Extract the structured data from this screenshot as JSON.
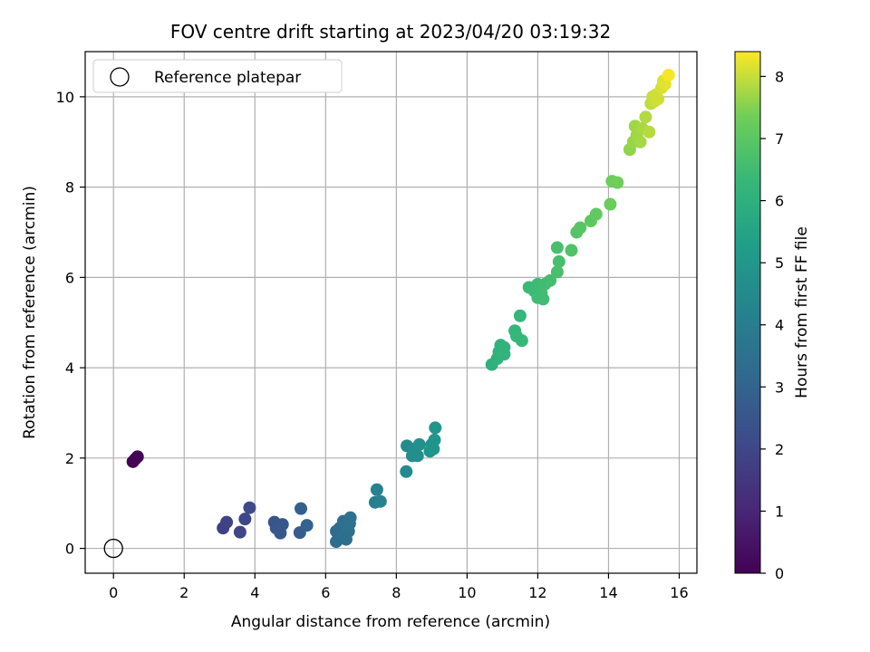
{
  "chart_data": {
    "type": "scatter",
    "title": "FOV centre drift starting at 2023/04/20 03:19:32",
    "xlabel": "Angular distance from reference (arcmin)",
    "ylabel": "Rotation from reference (arcmin)",
    "xlim": [
      -0.8,
      16.5
    ],
    "ylim": [
      -0.55,
      11.0
    ],
    "xticks": [
      0,
      2,
      4,
      6,
      8,
      10,
      12,
      14,
      16
    ],
    "yticks": [
      0,
      2,
      4,
      6,
      8,
      10
    ],
    "grid": true,
    "legend": {
      "placement": "upper-left",
      "entries": [
        "Reference platepar"
      ]
    },
    "colorbar": {
      "label": "Hours from first FF file",
      "min": 0,
      "max": 8.4,
      "ticks": [
        0,
        1,
        2,
        3,
        4,
        5,
        6,
        7,
        8
      ],
      "colormap": "viridis"
    },
    "reference_point": {
      "x": 0,
      "y": 0,
      "label": "Reference platepar"
    },
    "points": [
      {
        "x": 0.55,
        "y": 1.92,
        "c": 0.0
      },
      {
        "x": 0.62,
        "y": 1.98,
        "c": 0.05
      },
      {
        "x": 0.68,
        "y": 2.03,
        "c": 0.1
      },
      {
        "x": 3.1,
        "y": 0.45,
        "c": 1.8
      },
      {
        "x": 3.2,
        "y": 0.58,
        "c": 1.85
      },
      {
        "x": 3.58,
        "y": 0.36,
        "c": 2.0
      },
      {
        "x": 3.72,
        "y": 0.65,
        "c": 2.05
      },
      {
        "x": 3.85,
        "y": 0.9,
        "c": 2.1
      },
      {
        "x": 4.55,
        "y": 0.58,
        "c": 2.45
      },
      {
        "x": 4.6,
        "y": 0.45,
        "c": 2.5
      },
      {
        "x": 4.72,
        "y": 0.34,
        "c": 2.55
      },
      {
        "x": 4.78,
        "y": 0.53,
        "c": 2.6
      },
      {
        "x": 5.27,
        "y": 0.35,
        "c": 2.8
      },
      {
        "x": 5.3,
        "y": 0.88,
        "c": 2.85
      },
      {
        "x": 5.47,
        "y": 0.51,
        "c": 2.9
      },
      {
        "x": 6.3,
        "y": 0.15,
        "c": 3.3
      },
      {
        "x": 6.3,
        "y": 0.38,
        "c": 3.3
      },
      {
        "x": 6.4,
        "y": 0.45,
        "c": 3.35
      },
      {
        "x": 6.48,
        "y": 0.25,
        "c": 3.4
      },
      {
        "x": 6.5,
        "y": 0.6,
        "c": 3.4
      },
      {
        "x": 6.55,
        "y": 0.3,
        "c": 3.45
      },
      {
        "x": 6.6,
        "y": 0.5,
        "c": 3.5
      },
      {
        "x": 6.65,
        "y": 0.38,
        "c": 3.5
      },
      {
        "x": 6.7,
        "y": 0.68,
        "c": 3.55
      },
      {
        "x": 6.58,
        "y": 0.2,
        "c": 3.45
      },
      {
        "x": 6.68,
        "y": 0.55,
        "c": 3.55
      },
      {
        "x": 7.4,
        "y": 1.02,
        "c": 4.1
      },
      {
        "x": 7.45,
        "y": 1.3,
        "c": 4.15
      },
      {
        "x": 7.55,
        "y": 1.04,
        "c": 4.2
      },
      {
        "x": 8.28,
        "y": 1.7,
        "c": 4.5
      },
      {
        "x": 8.3,
        "y": 2.27,
        "c": 4.55
      },
      {
        "x": 8.45,
        "y": 2.05,
        "c": 4.6
      },
      {
        "x": 8.5,
        "y": 2.2,
        "c": 4.65
      },
      {
        "x": 8.6,
        "y": 2.05,
        "c": 4.7
      },
      {
        "x": 8.65,
        "y": 2.3,
        "c": 4.72
      },
      {
        "x": 8.95,
        "y": 2.15,
        "c": 4.85
      },
      {
        "x": 9.0,
        "y": 2.3,
        "c": 4.88
      },
      {
        "x": 9.05,
        "y": 2.2,
        "c": 4.9
      },
      {
        "x": 9.08,
        "y": 2.4,
        "c": 4.92
      },
      {
        "x": 9.1,
        "y": 2.67,
        "c": 4.95
      },
      {
        "x": 10.7,
        "y": 4.07,
        "c": 6.0
      },
      {
        "x": 10.85,
        "y": 4.2,
        "c": 6.05
      },
      {
        "x": 10.9,
        "y": 4.35,
        "c": 6.08
      },
      {
        "x": 10.95,
        "y": 4.5,
        "c": 6.1
      },
      {
        "x": 11.05,
        "y": 4.3,
        "c": 6.12
      },
      {
        "x": 11.05,
        "y": 4.45,
        "c": 6.15
      },
      {
        "x": 11.35,
        "y": 4.82,
        "c": 6.25
      },
      {
        "x": 11.4,
        "y": 4.7,
        "c": 6.28
      },
      {
        "x": 11.5,
        "y": 5.15,
        "c": 6.3
      },
      {
        "x": 11.55,
        "y": 4.6,
        "c": 6.32
      },
      {
        "x": 11.75,
        "y": 5.78,
        "c": 6.4
      },
      {
        "x": 11.9,
        "y": 5.7,
        "c": 6.42
      },
      {
        "x": 12.0,
        "y": 5.85,
        "c": 6.45
      },
      {
        "x": 12.0,
        "y": 5.55,
        "c": 6.47
      },
      {
        "x": 12.1,
        "y": 5.65,
        "c": 6.5
      },
      {
        "x": 12.15,
        "y": 5.52,
        "c": 6.52
      },
      {
        "x": 12.2,
        "y": 5.85,
        "c": 6.54
      },
      {
        "x": 12.35,
        "y": 5.93,
        "c": 6.56
      },
      {
        "x": 12.55,
        "y": 6.66,
        "c": 6.65
      },
      {
        "x": 12.6,
        "y": 6.35,
        "c": 6.66
      },
      {
        "x": 12.55,
        "y": 6.12,
        "c": 6.67
      },
      {
        "x": 12.95,
        "y": 6.6,
        "c": 6.8
      },
      {
        "x": 13.1,
        "y": 7.0,
        "c": 6.9
      },
      {
        "x": 13.2,
        "y": 7.1,
        "c": 6.95
      },
      {
        "x": 13.5,
        "y": 7.25,
        "c": 7.05
      },
      {
        "x": 13.65,
        "y": 7.4,
        "c": 7.1
      },
      {
        "x": 14.05,
        "y": 7.62,
        "c": 7.25
      },
      {
        "x": 14.1,
        "y": 8.13,
        "c": 7.3
      },
      {
        "x": 14.25,
        "y": 8.1,
        "c": 7.35
      },
      {
        "x": 14.6,
        "y": 8.83,
        "c": 7.6
      },
      {
        "x": 14.7,
        "y": 9.0,
        "c": 7.65
      },
      {
        "x": 14.75,
        "y": 9.35,
        "c": 7.7
      },
      {
        "x": 14.8,
        "y": 9.15,
        "c": 7.72
      },
      {
        "x": 14.9,
        "y": 9.0,
        "c": 7.75
      },
      {
        "x": 14.95,
        "y": 9.3,
        "c": 7.78
      },
      {
        "x": 15.05,
        "y": 9.55,
        "c": 7.85
      },
      {
        "x": 15.15,
        "y": 9.22,
        "c": 7.88
      },
      {
        "x": 15.2,
        "y": 9.85,
        "c": 7.95
      },
      {
        "x": 15.25,
        "y": 10.0,
        "c": 8.0
      },
      {
        "x": 15.3,
        "y": 9.9,
        "c": 8.02
      },
      {
        "x": 15.35,
        "y": 10.05,
        "c": 8.05
      },
      {
        "x": 15.4,
        "y": 9.95,
        "c": 8.07
      },
      {
        "x": 15.5,
        "y": 10.2,
        "c": 8.12
      },
      {
        "x": 15.55,
        "y": 10.35,
        "c": 8.15
      },
      {
        "x": 15.6,
        "y": 10.28,
        "c": 8.2
      },
      {
        "x": 15.7,
        "y": 10.48,
        "c": 8.35
      }
    ]
  }
}
